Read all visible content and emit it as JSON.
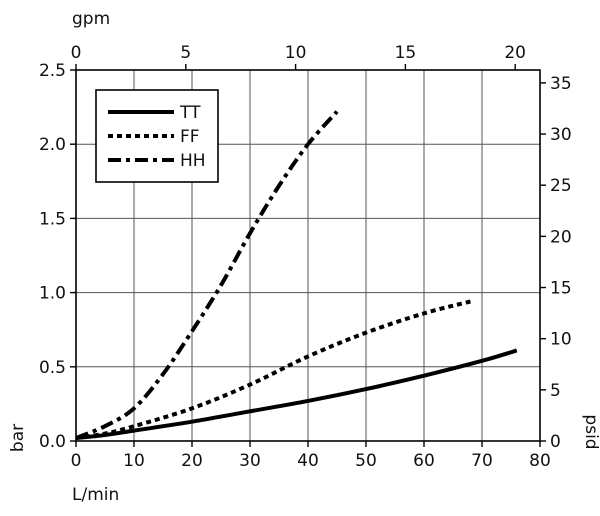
{
  "chart_data": {
    "type": "line",
    "title": "",
    "xlabel": "L/min",
    "ylabel": "bar",
    "x2label": "gpm",
    "y2label": "psid",
    "xlim": [
      0,
      80
    ],
    "ylim": [
      0,
      2.5
    ],
    "x2lim": [
      0,
      21.13
    ],
    "y2lim": [
      0,
      36.26
    ],
    "x_ticks": [
      0,
      10,
      20,
      30,
      40,
      50,
      60,
      70,
      80
    ],
    "y_ticks": [
      0.0,
      0.5,
      1.0,
      1.5,
      2.0,
      2.5
    ],
    "y_tick_labels": [
      "0.0",
      "0.5",
      "1.0",
      "1.5",
      "2.0",
      "2.5"
    ],
    "x2_ticks": [
      0,
      5,
      10,
      15,
      20
    ],
    "y2_ticks": [
      0,
      5,
      10,
      15,
      20,
      25,
      30,
      35
    ],
    "grid": true,
    "legend_position": "top-left",
    "series": [
      {
        "name": "TT",
        "style": "solid",
        "color": "#000000",
        "x": [
          0,
          5,
          10,
          20,
          30,
          40,
          50,
          60,
          70,
          76
        ],
        "y": [
          0.02,
          0.04,
          0.07,
          0.13,
          0.2,
          0.27,
          0.35,
          0.44,
          0.54,
          0.61
        ]
      },
      {
        "name": "FF",
        "style": "dotted",
        "color": "#000000",
        "x": [
          0,
          5,
          10,
          20,
          30,
          40,
          50,
          60,
          68
        ],
        "y": [
          0.02,
          0.05,
          0.1,
          0.22,
          0.38,
          0.57,
          0.73,
          0.86,
          0.94
        ]
      },
      {
        "name": "HH",
        "style": "dash-dot",
        "color": "#000000",
        "x": [
          0,
          5,
          10,
          15,
          20,
          25,
          30,
          35,
          40,
          45
        ],
        "y": [
          0.02,
          0.1,
          0.22,
          0.45,
          0.74,
          1.05,
          1.4,
          1.72,
          2.0,
          2.22
        ]
      }
    ]
  }
}
